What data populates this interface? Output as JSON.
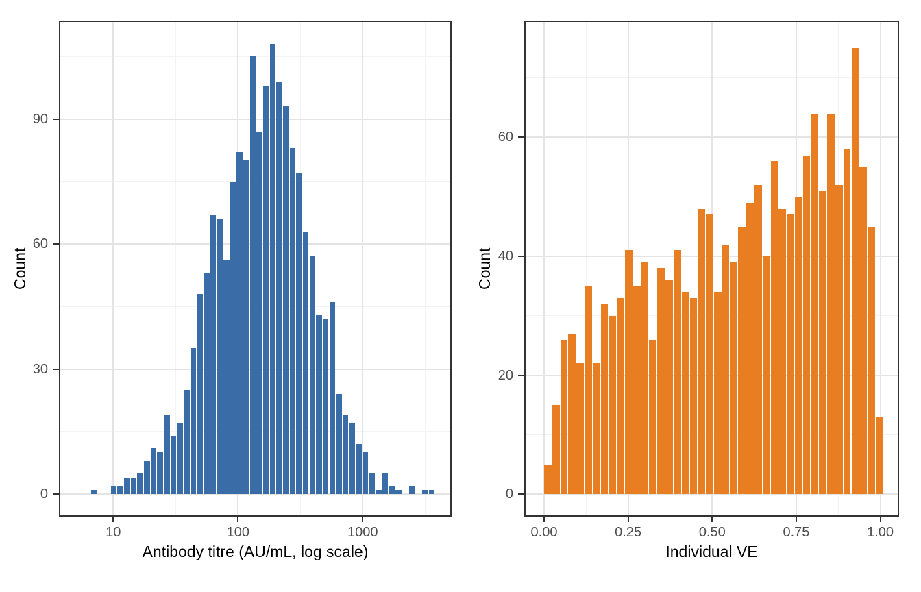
{
  "chart_data": [
    {
      "type": "histogram",
      "title": "",
      "xlabel": "Antibody titre (AU/mL, log scale)",
      "ylabel": "Count",
      "bar_color": "#3A6CA8",
      "x_scale": "log10",
      "x_domain_log10": [
        0.5645,
        3.7125
      ],
      "x_ticks": [
        {
          "value": 1,
          "label": "10"
        },
        {
          "value": 2,
          "label": "100"
        },
        {
          "value": 3,
          "label": "1000"
        }
      ],
      "x_minor_ticks": [
        1.5,
        2.5,
        3.5
      ],
      "y_domain": [
        -5.4,
        113.6
      ],
      "y_ticks": [
        {
          "value": 0,
          "label": "0"
        },
        {
          "value": 30,
          "label": "30"
        },
        {
          "value": 60,
          "label": "60"
        },
        {
          "value": 90,
          "label": "90"
        }
      ],
      "y_minor_ticks": [
        15,
        45,
        75,
        105
      ],
      "bin_start_log10": 0.8203,
      "bin_width_log10": 0.0531,
      "counts": [
        1,
        0,
        0,
        2,
        2,
        4,
        4,
        5,
        8,
        11,
        10,
        19,
        14,
        17,
        25,
        35,
        48,
        53,
        67,
        66,
        56,
        75,
        82,
        80,
        105,
        87,
        98,
        108,
        99,
        93,
        83,
        77,
        63,
        57,
        43,
        42,
        46,
        24,
        19,
        17,
        12,
        10,
        5,
        1,
        5,
        2,
        1,
        0,
        2,
        0,
        1,
        1
      ],
      "grid": true,
      "legend": "none"
    },
    {
      "type": "histogram",
      "title": "",
      "xlabel": "Individual VE",
      "ylabel": "Count",
      "bar_color": "#E87D22",
      "x_scale": "linear",
      "x_domain": [
        -0.0591,
        1.0559
      ],
      "x_ticks": [
        {
          "value": 0,
          "label": "0.00"
        },
        {
          "value": 0.25,
          "label": "0.25"
        },
        {
          "value": 0.5,
          "label": "0.50"
        },
        {
          "value": 0.75,
          "label": "0.75"
        },
        {
          "value": 1,
          "label": "1.00"
        }
      ],
      "x_minor_ticks": [
        0.125,
        0.375,
        0.625,
        0.875
      ],
      "y_domain": [
        -3.8,
        79.65
      ],
      "y_ticks": [
        {
          "value": 0,
          "label": "0"
        },
        {
          "value": 20,
          "label": "20"
        },
        {
          "value": 40,
          "label": "40"
        },
        {
          "value": 60,
          "label": "60"
        }
      ],
      "y_minor_ticks": [
        10,
        30,
        50,
        70
      ],
      "bin_start": 0.0,
      "bin_width": 0.02406,
      "counts": [
        5,
        15,
        26,
        27,
        22,
        35,
        22,
        32,
        30,
        33,
        41,
        35,
        39,
        26,
        38,
        36,
        41,
        34,
        33,
        48,
        47,
        34,
        42,
        39,
        45,
        49,
        52,
        40,
        56,
        48,
        47,
        50,
        57,
        64,
        51,
        64,
        52,
        58,
        75,
        55,
        45
      ],
      "capped_bar": {
        "value": 13,
        "x": 0.9886,
        "width": 0.01835
      },
      "grid": true,
      "legend": "none"
    }
  ],
  "colors": {
    "background": "#FFFFFF",
    "grid_major": "#E4E4E4",
    "grid_minor": "#F3F3F3",
    "panel_border": "#333333",
    "tick_label": "#4D4D4D",
    "axis_title": "#000000",
    "blue_bars": "#3A6CA8",
    "orange_bars": "#E87D22"
  }
}
